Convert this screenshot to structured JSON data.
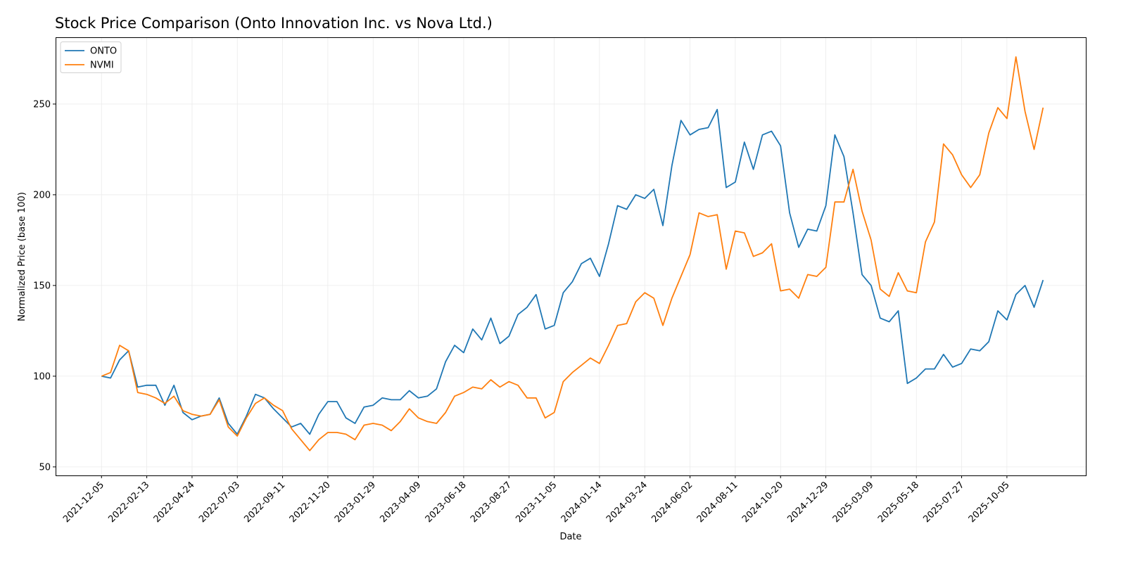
{
  "chart_data": {
    "type": "line",
    "title": "Stock Price Comparison (Onto Innovation Inc. vs Nova Ltd.)",
    "xlabel": "Date",
    "ylabel": "Normalized Price (base 100)",
    "xlim": [
      "2021-09-25",
      "2026-02-04"
    ],
    "ylim": [
      45.3,
      286.8
    ],
    "grid": true,
    "legend_position": "top-left",
    "x_ticks": [
      "2021-12-05",
      "2022-02-13",
      "2022-04-24",
      "2022-07-03",
      "2022-09-11",
      "2022-11-20",
      "2023-01-29",
      "2023-04-09",
      "2023-06-18",
      "2023-08-27",
      "2023-11-05",
      "2024-01-14",
      "2024-03-24",
      "2024-06-02",
      "2024-08-11",
      "2024-10-20",
      "2024-12-29",
      "2025-03-09",
      "2025-05-18",
      "2025-07-27",
      "2025-10-05"
    ],
    "y_ticks": [
      50,
      100,
      150,
      200,
      250
    ],
    "x": [
      "2021-12-05",
      "2021-12-19",
      "2022-01-02",
      "2022-01-16",
      "2022-01-30",
      "2022-02-13",
      "2022-02-27",
      "2022-03-13",
      "2022-03-27",
      "2022-04-10",
      "2022-04-24",
      "2022-05-08",
      "2022-05-22",
      "2022-06-05",
      "2022-06-19",
      "2022-07-03",
      "2022-07-17",
      "2022-07-31",
      "2022-08-14",
      "2022-08-28",
      "2022-09-11",
      "2022-09-25",
      "2022-10-09",
      "2022-10-23",
      "2022-11-06",
      "2022-11-20",
      "2022-12-04",
      "2022-12-18",
      "2023-01-01",
      "2023-01-15",
      "2023-01-29",
      "2023-02-12",
      "2023-02-26",
      "2023-03-12",
      "2023-03-26",
      "2023-04-09",
      "2023-04-23",
      "2023-05-07",
      "2023-05-21",
      "2023-06-04",
      "2023-06-18",
      "2023-07-02",
      "2023-07-16",
      "2023-07-30",
      "2023-08-13",
      "2023-08-27",
      "2023-09-10",
      "2023-09-24",
      "2023-10-08",
      "2023-10-22",
      "2023-11-05",
      "2023-11-19",
      "2023-12-03",
      "2023-12-17",
      "2023-12-31",
      "2024-01-14",
      "2024-01-28",
      "2024-02-11",
      "2024-02-25",
      "2024-03-10",
      "2024-03-24",
      "2024-04-07",
      "2024-04-21",
      "2024-05-05",
      "2024-05-19",
      "2024-06-02",
      "2024-06-16",
      "2024-06-30",
      "2024-07-14",
      "2024-07-28",
      "2024-08-11",
      "2024-08-25",
      "2024-09-08",
      "2024-09-22",
      "2024-10-06",
      "2024-10-20",
      "2024-11-03",
      "2024-11-17",
      "2024-12-01",
      "2024-12-15",
      "2024-12-29",
      "2025-01-12",
      "2025-01-26",
      "2025-02-09",
      "2025-02-23",
      "2025-03-09",
      "2025-03-23",
      "2025-04-06",
      "2025-04-20",
      "2025-05-04",
      "2025-05-18",
      "2025-06-01",
      "2025-06-15",
      "2025-06-29",
      "2025-07-13",
      "2025-07-27",
      "2025-08-10",
      "2025-08-24",
      "2025-09-07",
      "2025-09-21",
      "2025-10-05",
      "2025-10-19",
      "2025-11-02",
      "2025-11-16",
      "2025-11-30"
    ],
    "series": [
      {
        "name": "ONTO",
        "color": "#1f77b4",
        "values": [
          100,
          99,
          109,
          114,
          94,
          95,
          95,
          84,
          95,
          80,
          76,
          78,
          79,
          88,
          74,
          68,
          78,
          90,
          88,
          82,
          77,
          72,
          74,
          68,
          79,
          86,
          86,
          77,
          74,
          83,
          84,
          88,
          87,
          87,
          92,
          88,
          89,
          93,
          108,
          117,
          113,
          126,
          120,
          132,
          118,
          122,
          134,
          138,
          145,
          126,
          128,
          146,
          152,
          162,
          165,
          155,
          173,
          194,
          192,
          200,
          198,
          203,
          183,
          216,
          241,
          233,
          236,
          237,
          247,
          204,
          207,
          229,
          214,
          233,
          235,
          227,
          190,
          171,
          181,
          180,
          194,
          233,
          221,
          190,
          156,
          150,
          132,
          130,
          136,
          96,
          99,
          104,
          104,
          112,
          105,
          107,
          115,
          114,
          119,
          136,
          131,
          145,
          150,
          138,
          153
        ]
      },
      {
        "name": "NVMI",
        "color": "#ff7f0e",
        "values": [
          100,
          102,
          117,
          114,
          91,
          90,
          88,
          85,
          89,
          81,
          79,
          78,
          79,
          87,
          72,
          67,
          77,
          85,
          88,
          84,
          81,
          71,
          65,
          59,
          65,
          69,
          69,
          68,
          65,
          73,
          74,
          73,
          70,
          75,
          82,
          77,
          75,
          74,
          80,
          89,
          91,
          94,
          93,
          98,
          94,
          97,
          95,
          88,
          88,
          77,
          80,
          97,
          102,
          106,
          110,
          107,
          117,
          128,
          129,
          141,
          146,
          143,
          128,
          143,
          155,
          167,
          190,
          188,
          189,
          159,
          180,
          179,
          166,
          168,
          173,
          147,
          148,
          143,
          156,
          155,
          160,
          196,
          196,
          214,
          191,
          175,
          148,
          144,
          157,
          147,
          146,
          174,
          185,
          228,
          222,
          211,
          204,
          211,
          234,
          248,
          242,
          276,
          246,
          225,
          248
        ]
      }
    ]
  }
}
